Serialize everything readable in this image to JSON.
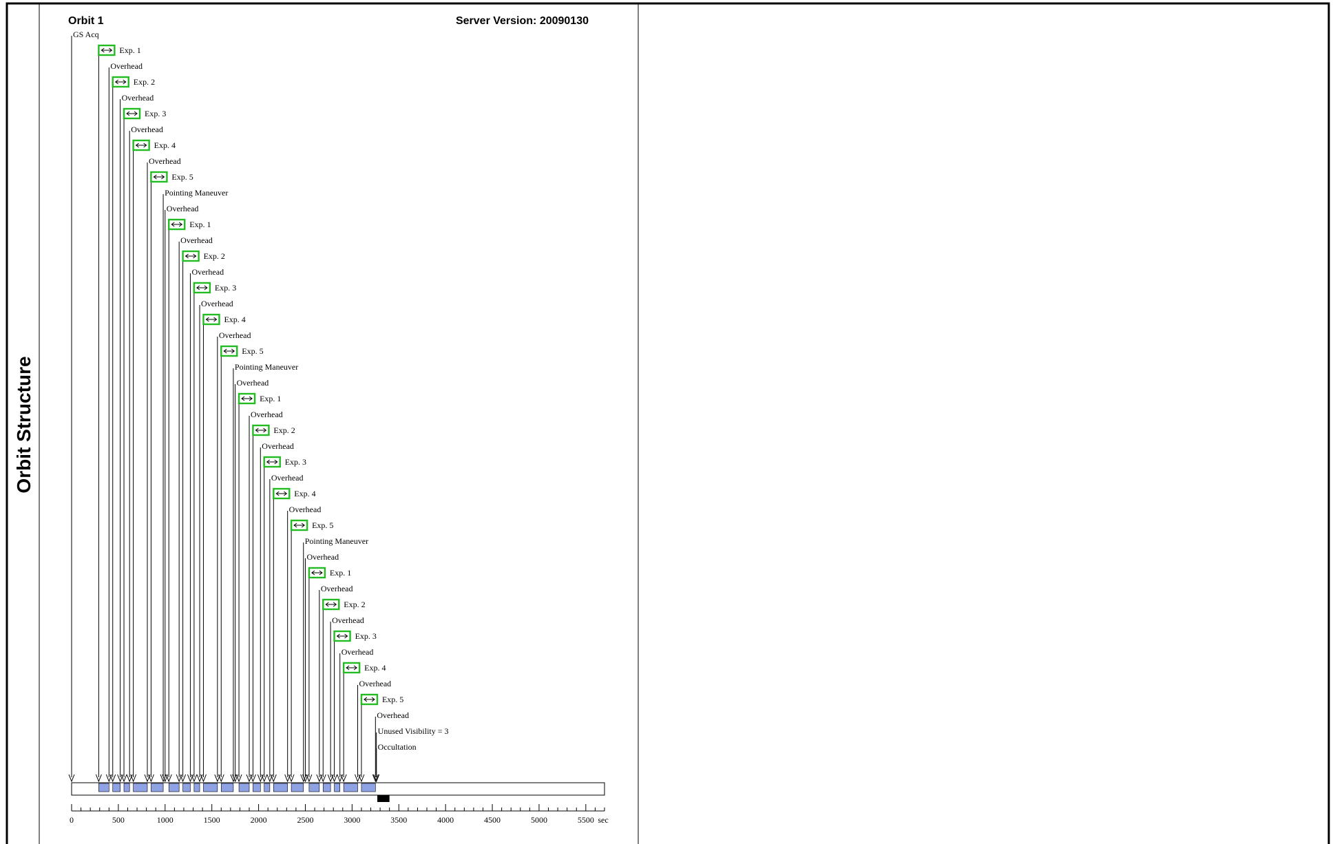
{
  "panel": {
    "side_title": "Orbit Structure",
    "orbit_title": "Orbit 1",
    "server_version": "Server Version: 20090130"
  },
  "chart_data": {
    "type": "timeline",
    "x_unit": "sec",
    "x_range": [
      0,
      5700
    ],
    "x_ticks": [
      0,
      500,
      1000,
      1500,
      2000,
      2500,
      3000,
      3500,
      4000,
      4500,
      5000,
      5500
    ],
    "events": [
      {
        "label": "GS Acq",
        "time": 0,
        "exposure": false
      },
      {
        "label": "Exp. 1",
        "time": 290,
        "exposure": true
      },
      {
        "label": "Overhead",
        "time": 400,
        "exposure": false
      },
      {
        "label": "Exp. 2",
        "time": 440,
        "exposure": true
      },
      {
        "label": "Overhead",
        "time": 520,
        "exposure": false
      },
      {
        "label": "Exp. 3",
        "time": 560,
        "exposure": true
      },
      {
        "label": "Overhead",
        "time": 620,
        "exposure": false
      },
      {
        "label": "Exp. 4",
        "time": 660,
        "exposure": true
      },
      {
        "label": "Overhead",
        "time": 810,
        "exposure": false
      },
      {
        "label": "Exp. 5",
        "time": 850,
        "exposure": true
      },
      {
        "label": "Pointing Maneuver",
        "time": 980,
        "exposure": false
      },
      {
        "label": "Overhead",
        "time": 1000,
        "exposure": false
      },
      {
        "label": "Exp. 1",
        "time": 1040,
        "exposure": true
      },
      {
        "label": "Overhead",
        "time": 1150,
        "exposure": false
      },
      {
        "label": "Exp. 2",
        "time": 1190,
        "exposure": true
      },
      {
        "label": "Overhead",
        "time": 1270,
        "exposure": false
      },
      {
        "label": "Exp. 3",
        "time": 1310,
        "exposure": true
      },
      {
        "label": "Overhead",
        "time": 1370,
        "exposure": false
      },
      {
        "label": "Exp. 4",
        "time": 1410,
        "exposure": true
      },
      {
        "label": "Overhead",
        "time": 1560,
        "exposure": false
      },
      {
        "label": "Exp. 5",
        "time": 1600,
        "exposure": true
      },
      {
        "label": "Pointing Maneuver",
        "time": 1730,
        "exposure": false
      },
      {
        "label": "Overhead",
        "time": 1750,
        "exposure": false
      },
      {
        "label": "Exp. 1",
        "time": 1790,
        "exposure": true
      },
      {
        "label": "Overhead",
        "time": 1900,
        "exposure": false
      },
      {
        "label": "Exp. 2",
        "time": 1940,
        "exposure": true
      },
      {
        "label": "Overhead",
        "time": 2020,
        "exposure": false
      },
      {
        "label": "Exp. 3",
        "time": 2060,
        "exposure": true
      },
      {
        "label": "Overhead",
        "time": 2120,
        "exposure": false
      },
      {
        "label": "Exp. 4",
        "time": 2160,
        "exposure": true
      },
      {
        "label": "Overhead",
        "time": 2310,
        "exposure": false
      },
      {
        "label": "Exp. 5",
        "time": 2350,
        "exposure": true
      },
      {
        "label": "Pointing Maneuver",
        "time": 2480,
        "exposure": false
      },
      {
        "label": "Overhead",
        "time": 2500,
        "exposure": false
      },
      {
        "label": "Exp. 1",
        "time": 2540,
        "exposure": true
      },
      {
        "label": "Overhead",
        "time": 2650,
        "exposure": false
      },
      {
        "label": "Exp. 2",
        "time": 2690,
        "exposure": true
      },
      {
        "label": "Overhead",
        "time": 2770,
        "exposure": false
      },
      {
        "label": "Exp. 3",
        "time": 2810,
        "exposure": true
      },
      {
        "label": "Overhead",
        "time": 2870,
        "exposure": false
      },
      {
        "label": "Exp. 4",
        "time": 2910,
        "exposure": true
      },
      {
        "label": "Overhead",
        "time": 3060,
        "exposure": false
      },
      {
        "label": "Exp. 5",
        "time": 3100,
        "exposure": true
      },
      {
        "label": "Overhead",
        "time": 3250,
        "exposure": false
      },
      {
        "label": "Unused Visibility = 3",
        "time": 3260,
        "exposure": false
      },
      {
        "label": "Occultation",
        "time": 3260,
        "exposure": false
      }
    ],
    "orbit_end": 5700,
    "occultation_marker": [
      3270,
      3400
    ]
  }
}
